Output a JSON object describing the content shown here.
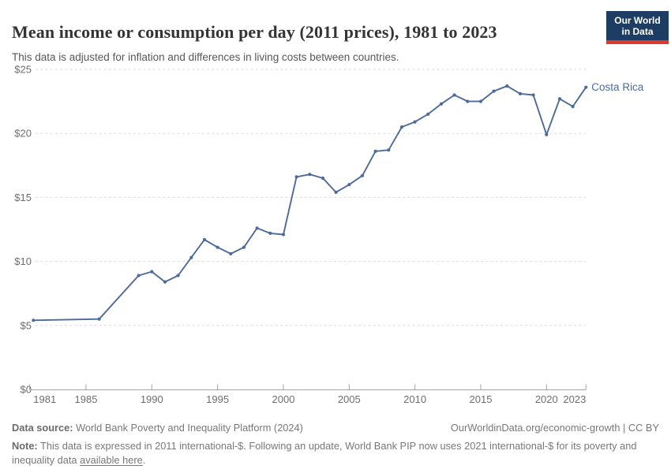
{
  "logo": {
    "line1": "Our World",
    "line2": "in Data",
    "bg_color": "#1D3D63",
    "accent_color": "#D93B33"
  },
  "chart_data": {
    "type": "line",
    "title": "Mean income or consumption per day (2011 prices), 1981 to 2023",
    "subtitle": "This data is adjusted for inflation and differences in living costs between countries.",
    "xlabel": "",
    "ylabel": "",
    "xlim": [
      1981,
      2023
    ],
    "ylim": [
      0,
      25
    ],
    "grid": "horizontal-dashed",
    "grid_color": "#DBDBDB",
    "axis_color": "#A3A3A3",
    "tick_label_color": "#6E6E6E",
    "legend_position": "line-end-label",
    "yticks": [
      {
        "v": 0,
        "label": "$0"
      },
      {
        "v": 5,
        "label": "$5"
      },
      {
        "v": 10,
        "label": "$10"
      },
      {
        "v": 15,
        "label": "$15"
      },
      {
        "v": 20,
        "label": "$20"
      },
      {
        "v": 25,
        "label": "$25"
      }
    ],
    "xticks": [
      {
        "v": 1981,
        "label": "1981"
      },
      {
        "v": 1985,
        "label": "1985"
      },
      {
        "v": 1990,
        "label": "1990"
      },
      {
        "v": 1995,
        "label": "1995"
      },
      {
        "v": 2000,
        "label": "2000"
      },
      {
        "v": 2005,
        "label": "2005"
      },
      {
        "v": 2010,
        "label": "2010"
      },
      {
        "v": 2015,
        "label": "2015"
      },
      {
        "v": 2020,
        "label": "2020"
      },
      {
        "v": 2023,
        "label": "2023"
      }
    ],
    "series": [
      {
        "name": "Costa Rica",
        "color": "#4C6A9C",
        "marker": "circle",
        "points": [
          [
            1981,
            5.4
          ],
          [
            1986,
            5.5
          ],
          [
            1989,
            8.9
          ],
          [
            1990,
            9.2
          ],
          [
            1991,
            8.4
          ],
          [
            1992,
            8.9
          ],
          [
            1993,
            10.3
          ],
          [
            1994,
            11.7
          ],
          [
            1995,
            11.1
          ],
          [
            1996,
            10.6
          ],
          [
            1997,
            11.1
          ],
          [
            1998,
            12.6
          ],
          [
            1999,
            12.2
          ],
          [
            2000,
            12.1
          ],
          [
            2001,
            16.6
          ],
          [
            2002,
            16.8
          ],
          [
            2003,
            16.5
          ],
          [
            2004,
            15.4
          ],
          [
            2005,
            16.0
          ],
          [
            2006,
            16.7
          ],
          [
            2007,
            18.6
          ],
          [
            2008,
            18.7
          ],
          [
            2009,
            20.5
          ],
          [
            2010,
            20.9
          ],
          [
            2011,
            21.5
          ],
          [
            2012,
            22.3
          ],
          [
            2013,
            23.0
          ],
          [
            2014,
            22.5
          ],
          [
            2015,
            22.5
          ],
          [
            2016,
            23.3
          ],
          [
            2017,
            23.7
          ],
          [
            2018,
            23.1
          ],
          [
            2019,
            23.0
          ],
          [
            2020,
            19.9
          ],
          [
            2021,
            22.7
          ],
          [
            2022,
            22.1
          ],
          [
            2023,
            23.6
          ]
        ]
      }
    ]
  },
  "footer": {
    "datasource_label": "Data source:",
    "datasource_text": " World Bank Poverty and Inequality Platform (2024)",
    "attribution": "OurWorldinData.org/economic-growth | CC BY",
    "note_label": "Note:",
    "note_text_before": " This data is expressed in 2011 international-$. Following an update, World Bank PIP now uses 2021 international-$ for its poverty and inequality data ",
    "note_link": "available here",
    "note_text_after": "."
  }
}
